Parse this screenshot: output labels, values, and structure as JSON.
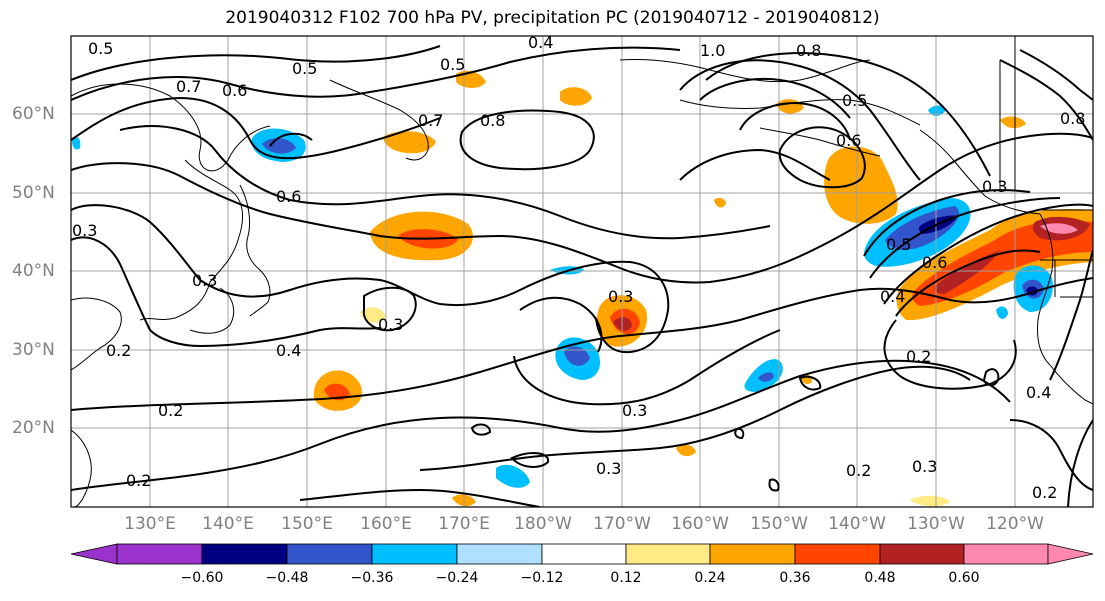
{
  "title": "2019040312 F102 700 hPa PV, precipitation PC (2019040712 - 2019040812)",
  "lat_labels": [
    "60°N",
    "50°N",
    "40°N",
    "30°N",
    "20°N"
  ],
  "lon_labels": [
    "130°E",
    "140°E",
    "150°E",
    "160°E",
    "170°E",
    "180°W",
    "170°W",
    "160°W",
    "150°W",
    "140°W",
    "130°W",
    "120°W"
  ],
  "colorbar": {
    "ticks": [
      "−0.60",
      "−0.48",
      "−0.36",
      "−0.24",
      "−0.12",
      "0.12",
      "0.24",
      "0.36",
      "0.48",
      "0.60"
    ],
    "colors": [
      "#9933cc",
      "#000080",
      "#3355cc",
      "#00bfff",
      "#b0e0ff",
      "#ffffff",
      "#ffeb85",
      "#ffa500",
      "#ff4500",
      "#b22222",
      "#ff88b0"
    ]
  },
  "contour_labels": [
    "0.5",
    "0.7",
    "0.6",
    "0.5",
    "0.4",
    "0.5",
    "0.7",
    "0.8",
    "1.0",
    "0.8",
    "0.5",
    "0.6",
    "0.6",
    "0.3",
    "0.3",
    "0.3",
    "0.5",
    "0.6",
    "0.4",
    "0.3",
    "0.4",
    "0.2",
    "0.3",
    "0.2",
    "0.3",
    "0.2",
    "0.3",
    "0.2",
    "0.2",
    "0.4",
    "0.2",
    "0.3",
    "0.8"
  ]
}
